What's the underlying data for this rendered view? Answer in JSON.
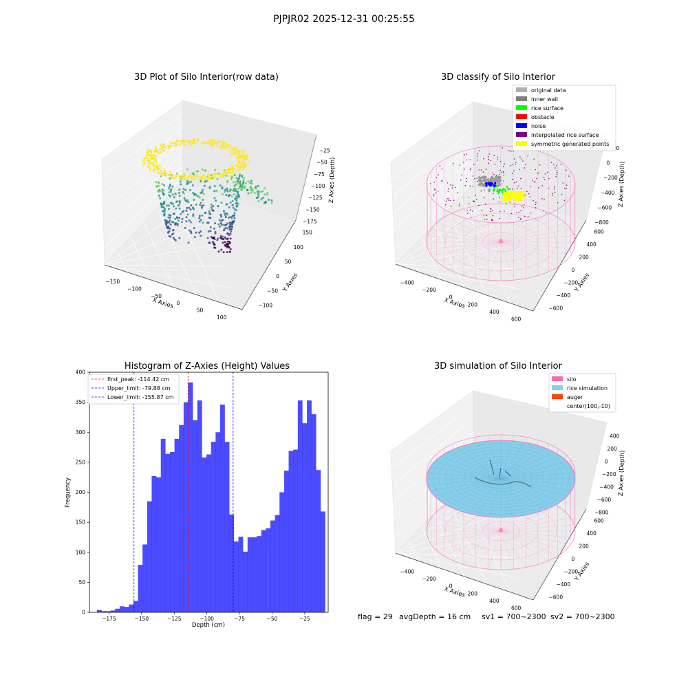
{
  "figure": {
    "suptitle": "PJPJR02 2025-12-31 00:25:55",
    "status": {
      "flag": "flag = 29",
      "avg_depth": "avgDepth = 16 cm",
      "sv1": "sv1 = 700~2300",
      "sv2": "sv2 = 700~2300"
    }
  },
  "colors": {
    "pink": "#ff69b4",
    "sky": "#87ceeb",
    "auger": "#ff4500",
    "hist": "#0000ff",
    "peak": "#ff0000",
    "limit": "#0000ff"
  },
  "chart_data": [
    {
      "type": "scatter3d",
      "title": "3D Plot of Silo Interior(row data)",
      "xlabel": "X Axies",
      "ylabel": "Y Axies",
      "zlabel": "Z Axies (Depth)",
      "x_ticks": [
        "−150",
        "−100",
        "−50",
        "0",
        "50",
        "100"
      ],
      "y_ticks": [
        "−100",
        "−50",
        "0",
        "50",
        "100",
        "150"
      ],
      "z_ticks": [
        "−25",
        "−50",
        "−75",
        "−100",
        "−125",
        "−150",
        "−175"
      ],
      "colormap": "viridis"
    },
    {
      "type": "scatter3d",
      "title": "3D classify of Silo Interior",
      "xlabel": "X Axies",
      "ylabel": "Y Axies",
      "zlabel": "Z Axies (Depth)",
      "x_ticks": [
        "−400",
        "−200",
        "0",
        "200",
        "400",
        "600"
      ],
      "y_ticks": [
        "−600",
        "−400",
        "−200",
        "0",
        "200",
        "400",
        "600"
      ],
      "z_ticks": [
        "200",
        "0",
        "−200",
        "−400",
        "−600",
        "−800"
      ],
      "legend": [
        {
          "label": "original data",
          "color": "#b0b0b0"
        },
        {
          "label": "inner wall",
          "color": "#808080"
        },
        {
          "label": "rice surface",
          "color": "#00ff00"
        },
        {
          "label": "obstacle",
          "color": "#ff0000"
        },
        {
          "label": "noise",
          "color": "#0000ff"
        },
        {
          "label": "interpolated rice surface",
          "color": "#800080"
        },
        {
          "label": "symmetric generated points",
          "color": "#ffff00"
        }
      ]
    },
    {
      "type": "bar",
      "title": "Histogram of Z-Axies (Height) Values",
      "xlabel": "Depth (cm)",
      "ylabel": "Frequency",
      "xlim": [
        -190,
        -7
      ],
      "ylim": [
        0,
        400
      ],
      "x_ticks": [
        {
          "v": -175,
          "label": "−175"
        },
        {
          "v": -150,
          "label": "−150"
        },
        {
          "v": -125,
          "label": "−125"
        },
        {
          "v": -100,
          "label": "−100"
        },
        {
          "v": -75,
          "label": "−75"
        },
        {
          "v": -50,
          "label": "−50"
        },
        {
          "v": -25,
          "label": "−25"
        }
      ],
      "y_ticks": [
        0,
        50,
        100,
        150,
        200,
        250,
        300,
        350,
        400
      ],
      "bin_start": -184.3,
      "bin_width": 3.5,
      "values": [
        4,
        2,
        2,
        3,
        6,
        10,
        9,
        13,
        19,
        79,
        113,
        185,
        227,
        225,
        289,
        264,
        267,
        289,
        312,
        350,
        383,
        320,
        353,
        258,
        263,
        284,
        300,
        346,
        284,
        163,
        118,
        126,
        101,
        125,
        125,
        127,
        137,
        140,
        153,
        162,
        200,
        236,
        269,
        271,
        353,
        315,
        353,
        330,
        237,
        168
      ],
      "vlines": [
        {
          "x": -114.42,
          "label": "first_peak: -114.42 cm",
          "color": "#ff0000"
        },
        {
          "x": -79.88,
          "label": "Upper_limit: -79.88 cm",
          "color": "#0000ff"
        },
        {
          "x": -155.87,
          "label": "Lower_limit: -155.87 cm",
          "color": "#0000ff"
        }
      ]
    },
    {
      "type": "surface3d",
      "title": "3D simulation of Silo Interior",
      "xlabel": "X Axies",
      "ylabel": "Y Axies",
      "zlabel": "Z Axies (Depth)",
      "x_ticks": [
        "−400",
        "−200",
        "0",
        "200",
        "400",
        "600"
      ],
      "y_ticks": [
        "−600",
        "−400",
        "−200",
        "0",
        "200",
        "400",
        "600"
      ],
      "z_ticks": [
        "400",
        "200",
        "0",
        "−200",
        "−400",
        "−600",
        "−800"
      ],
      "legend": [
        {
          "label": "silo",
          "color": "#ff69b4"
        },
        {
          "label": "rice simulation",
          "color": "#87ceeb"
        },
        {
          "label": "auger",
          "color": "#ff4500"
        },
        {
          "label": "center(100,-10)",
          "color": ""
        }
      ]
    }
  ]
}
